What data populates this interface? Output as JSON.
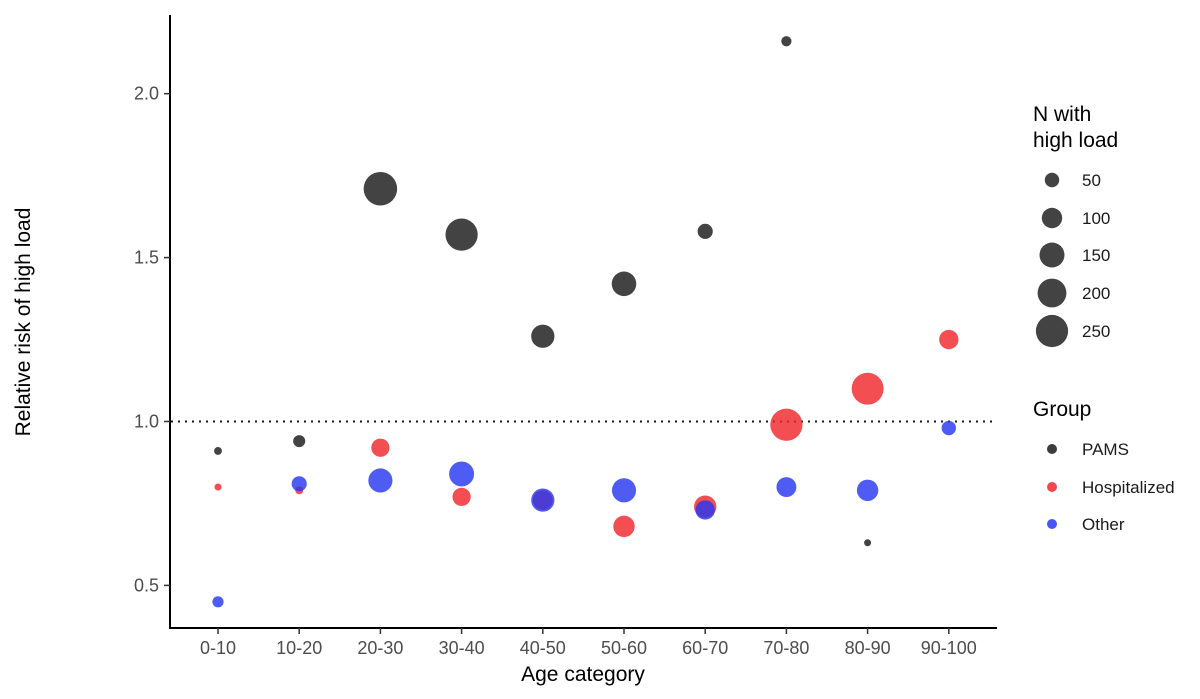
{
  "chart_data": {
    "type": "scatter",
    "xlabel": "Age category",
    "ylabel": "Relative risk of high load",
    "categories": [
      "0-10",
      "10-20",
      "20-30",
      "30-40",
      "40-50",
      "50-60",
      "60-70",
      "70-80",
      "80-90",
      "90-100"
    ],
    "ylim": [
      0.37,
      2.24
    ],
    "yticks": [
      0.5,
      1.0,
      1.5,
      2.0
    ],
    "ytick_labels": [
      "0.5",
      "1.0",
      "1.5",
      "2.0"
    ],
    "reference_line": 1.0,
    "size_legend": {
      "title_lines": [
        "N with",
        "high load"
      ],
      "values": [
        50,
        100,
        150,
        200,
        250
      ],
      "labels": [
        "50",
        "100",
        "150",
        "200",
        "250"
      ]
    },
    "group_legend": {
      "title": "Group"
    },
    "series": [
      {
        "name": "PAMS",
        "color": "#1a1a1a",
        "points": [
          {
            "x": "0-10",
            "y": 0.91,
            "n": 15
          },
          {
            "x": "10-20",
            "y": 0.94,
            "n": 35
          },
          {
            "x": "20-30",
            "y": 1.71,
            "n": 270
          },
          {
            "x": "30-40",
            "y": 1.57,
            "n": 250
          },
          {
            "x": "40-50",
            "y": 1.26,
            "n": 130
          },
          {
            "x": "50-60",
            "y": 1.42,
            "n": 145
          },
          {
            "x": "60-70",
            "y": 1.58,
            "n": 55
          },
          {
            "x": "70-80",
            "y": 2.16,
            "n": 25
          },
          {
            "x": "80-90",
            "y": 0.63,
            "n": 3
          }
        ]
      },
      {
        "name": "Hospitalized",
        "color": "#f0282d",
        "points": [
          {
            "x": "0-10",
            "y": 0.8,
            "n": 12
          },
          {
            "x": "10-20",
            "y": 0.79,
            "n": 15
          },
          {
            "x": "20-30",
            "y": 0.92,
            "n": 80
          },
          {
            "x": "30-40",
            "y": 0.77,
            "n": 80
          },
          {
            "x": "40-50",
            "y": 0.76,
            "n": 95
          },
          {
            "x": "50-60",
            "y": 0.68,
            "n": 110
          },
          {
            "x": "60-70",
            "y": 0.74,
            "n": 120
          },
          {
            "x": "70-80",
            "y": 0.99,
            "n": 250
          },
          {
            "x": "80-90",
            "y": 1.1,
            "n": 245
          },
          {
            "x": "90-100",
            "y": 1.25,
            "n": 90
          }
        ]
      },
      {
        "name": "Other",
        "color": "#2838f0",
        "points": [
          {
            "x": "0-10",
            "y": 0.45,
            "n": 30
          },
          {
            "x": "10-20",
            "y": 0.81,
            "n": 55
          },
          {
            "x": "20-30",
            "y": 0.82,
            "n": 140
          },
          {
            "x": "30-40",
            "y": 0.84,
            "n": 150
          },
          {
            "x": "40-50",
            "y": 0.76,
            "n": 130
          },
          {
            "x": "50-60",
            "y": 0.79,
            "n": 140
          },
          {
            "x": "60-70",
            "y": 0.73,
            "n": 90
          },
          {
            "x": "70-80",
            "y": 0.8,
            "n": 95
          },
          {
            "x": "80-90",
            "y": 0.79,
            "n": 110
          },
          {
            "x": "90-100",
            "y": 0.98,
            "n": 50
          }
        ]
      }
    ]
  }
}
